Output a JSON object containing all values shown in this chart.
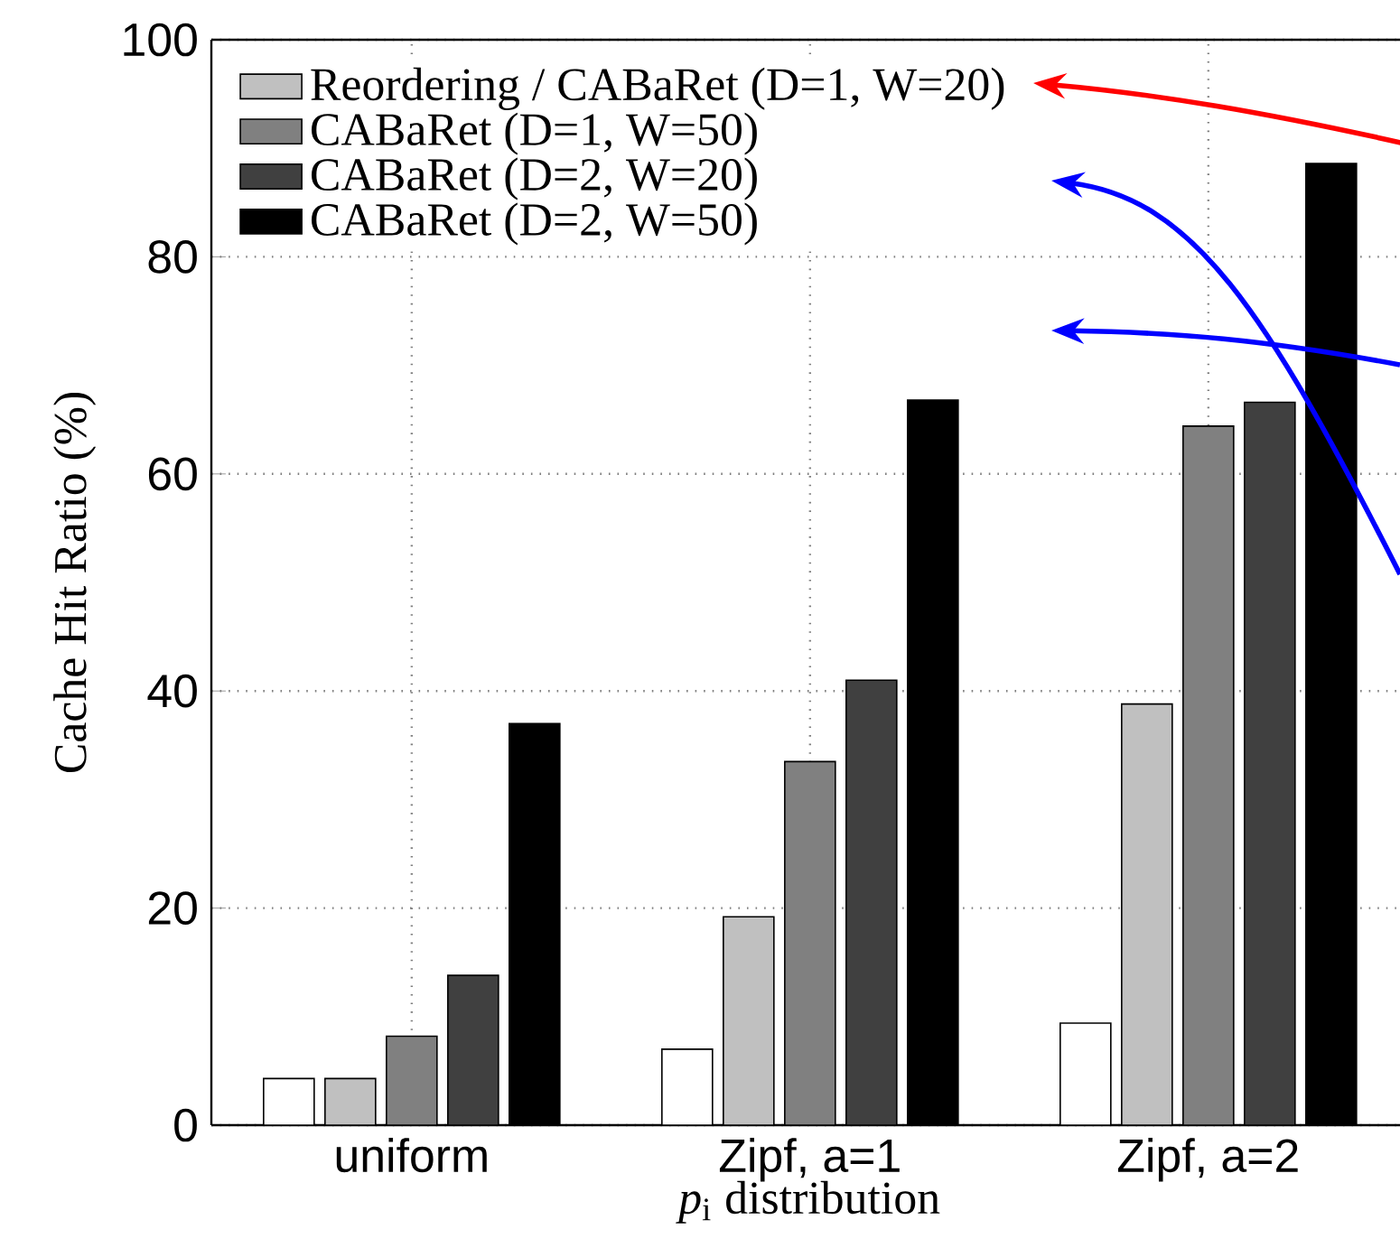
{
  "chart_data": {
    "type": "bar",
    "xlabel": "*p*$_{i}$ distribution",
    "ylabel": "Cache Hit Ratio (%)",
    "categories": [
      "uniform",
      "Zipf, a=1",
      "Zipf, a=2"
    ],
    "series": [
      {
        "color": "#ffffff",
        "values": [
          4.3,
          7.0,
          9.4
        ]
      },
      {
        "name": "Reordering / CABaRet (D=1, W=20)",
        "color": "#c0c0c0",
        "values": [
          4.3,
          19.2,
          38.8
        ]
      },
      {
        "name": "CABaRet (D=1, W=50)",
        "color": "#808080",
        "values": [
          8.2,
          33.5,
          64.4
        ]
      },
      {
        "name": "CABaRet (D=2, W=20)",
        "color": "#404040",
        "values": [
          13.8,
          41.0,
          66.6
        ]
      },
      {
        "name": "CABaRet (D=2, W=50)",
        "color": "#000000",
        "values": [
          37.0,
          66.8,
          88.6
        ]
      }
    ],
    "ylim": [
      0,
      100
    ],
    "yticks": [
      0,
      20,
      40,
      60,
      80,
      100
    ],
    "grid": true,
    "legend": "top left"
  }
}
